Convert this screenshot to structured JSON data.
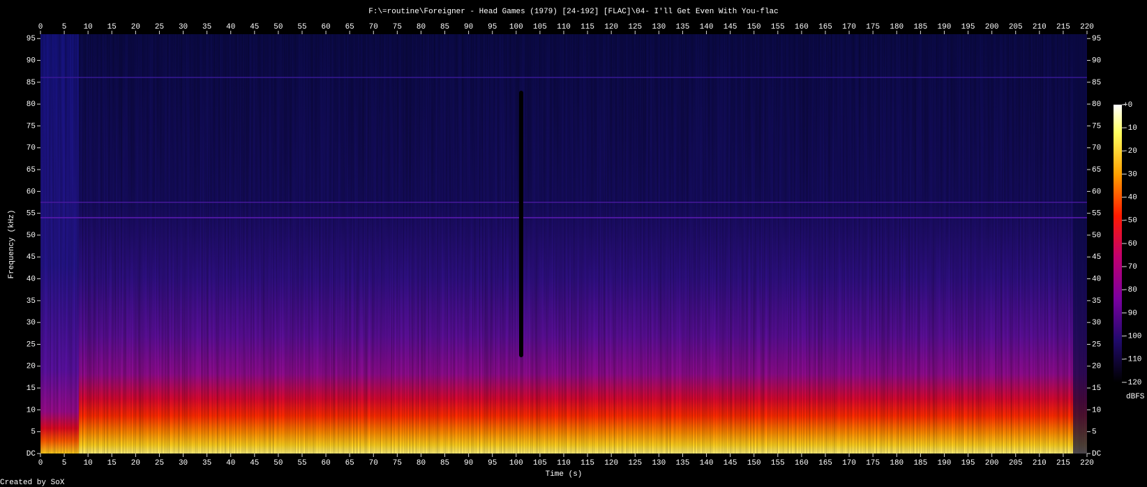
{
  "chart_data": {
    "type": "spectrogram",
    "title": "F:\\=routine\\Foreigner - Head Games (1979) [24-192] [FLAC]\\04- I'll Get Even With You-flac",
    "xlabel": "Time (s)",
    "ylabel": "Frequency (kHz)",
    "xlim": [
      0,
      220
    ],
    "xticks": [
      0,
      5,
      10,
      15,
      20,
      25,
      30,
      35,
      40,
      45,
      50,
      55,
      60,
      65,
      70,
      75,
      80,
      85,
      90,
      95,
      100,
      105,
      110,
      115,
      120,
      125,
      130,
      135,
      140,
      145,
      150,
      155,
      160,
      165,
      170,
      175,
      180,
      185,
      190,
      195,
      200,
      205,
      210,
      215,
      220
    ],
    "ylim": [
      0,
      96
    ],
    "yticks": [
      {
        "value": 0,
        "label": "DC"
      },
      5,
      10,
      15,
      20,
      25,
      30,
      35,
      40,
      45,
      50,
      55,
      60,
      65,
      70,
      75,
      80,
      85,
      90,
      95
    ],
    "colorbar": {
      "label": "dBFS",
      "lim": [
        -120,
        0
      ],
      "ticks": [
        {
          "value": 0,
          "label": "+0"
        },
        -10,
        -20,
        -30,
        -40,
        -50,
        -60,
        -70,
        -80,
        -90,
        -100,
        -110,
        -120
      ]
    },
    "footer": "Created by SoX"
  }
}
